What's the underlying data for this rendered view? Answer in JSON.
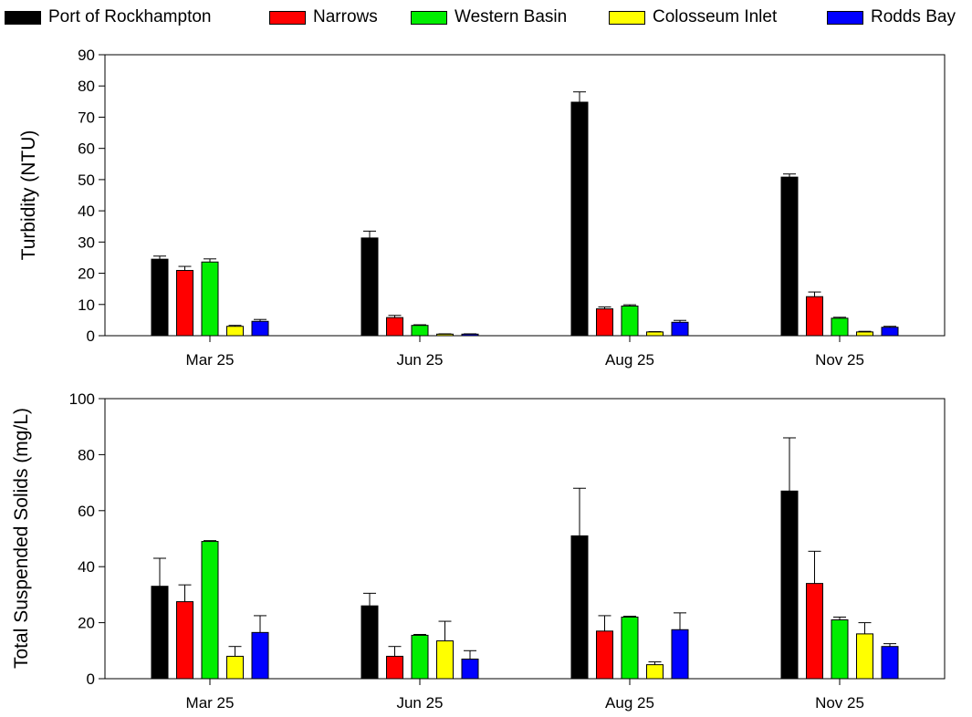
{
  "legend": [
    {
      "name": "Port of Rockhampton",
      "color": "#000000"
    },
    {
      "name": "Narrows",
      "color": "#ff0000"
    },
    {
      "name": "Western Basin",
      "color": "#00ee00"
    },
    {
      "name": "Colosseum Inlet",
      "color": "#ffff00"
    },
    {
      "name": "Rodds Bay",
      "color": "#0000ff"
    }
  ],
  "chart_data": [
    {
      "type": "bar",
      "ylabel": "Turbidity (NTU)",
      "xlabel": "",
      "categories": [
        "Mar 25",
        "Jun 25",
        "Aug 25",
        "Nov 25"
      ],
      "ylim": [
        0,
        90
      ],
      "yticks": [
        0,
        10,
        20,
        30,
        40,
        50,
        60,
        70,
        80,
        90
      ],
      "series": [
        {
          "name": "Port of Rockhampton",
          "values": [
            24.5,
            31.3,
            74.8,
            50.8
          ],
          "errors": [
            1.0,
            2.2,
            3.3,
            1.0
          ]
        },
        {
          "name": "Narrows",
          "values": [
            20.9,
            5.8,
            8.6,
            12.5
          ],
          "errors": [
            1.3,
            0.7,
            0.6,
            1.5
          ]
        },
        {
          "name": "Western Basin",
          "values": [
            23.6,
            3.3,
            9.5,
            5.6
          ],
          "errors": [
            1.0,
            0.2,
            0.4,
            0.3
          ]
        },
        {
          "name": "Colosseum Inlet",
          "values": [
            3.0,
            0.5,
            1.2,
            1.2
          ],
          "errors": [
            0.3,
            0.1,
            0.1,
            0.2
          ]
        },
        {
          "name": "Rodds Bay",
          "values": [
            4.6,
            0.5,
            4.3,
            2.7
          ],
          "errors": [
            0.6,
            0.1,
            0.6,
            0.3
          ]
        }
      ]
    },
    {
      "type": "bar",
      "ylabel": "Total Suspended Solids (mg/L)",
      "xlabel": "",
      "categories": [
        "Mar 25",
        "Jun 25",
        "Aug 25",
        "Nov 25"
      ],
      "ylim": [
        0,
        100
      ],
      "yticks": [
        0,
        20,
        40,
        60,
        80,
        100
      ],
      "series": [
        {
          "name": "Port of Rockhampton",
          "values": [
            33.0,
            26.0,
            51.0,
            67.0
          ],
          "errors": [
            10.0,
            4.5,
            17.0,
            19.0
          ]
        },
        {
          "name": "Narrows",
          "values": [
            27.5,
            8.0,
            17.0,
            34.0
          ],
          "errors": [
            6.0,
            3.5,
            5.5,
            11.5
          ]
        },
        {
          "name": "Western Basin",
          "values": [
            49.0,
            15.5,
            22.0,
            21.0
          ],
          "errors": [
            0.3,
            0.3,
            0.3,
            1.0
          ]
        },
        {
          "name": "Colosseum Inlet",
          "values": [
            8.0,
            13.5,
            5.0,
            16.0
          ],
          "errors": [
            3.5,
            7.0,
            1.0,
            4.0
          ]
        },
        {
          "name": "Rodds Bay",
          "values": [
            16.5,
            7.0,
            17.5,
            11.5
          ],
          "errors": [
            6.0,
            3.0,
            6.0,
            1.0
          ]
        }
      ]
    }
  ]
}
